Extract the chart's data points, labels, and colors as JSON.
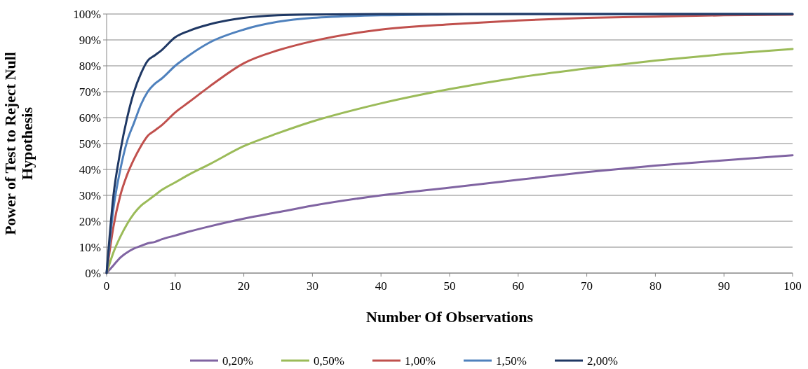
{
  "chart_data": {
    "type": "line",
    "xlabel": "Number Of Observations",
    "ylabel": "Power of Test to Reject Null Hypothesis",
    "x": [
      0,
      1,
      2,
      3,
      4,
      5,
      6,
      7,
      8,
      10,
      12,
      15,
      20,
      25,
      30,
      40,
      50,
      60,
      70,
      80,
      90,
      100
    ],
    "series": [
      {
        "name": "0,20%",
        "color": "#8064a2",
        "values": [
          0,
          3,
          6,
          8,
          9.5,
          10.5,
          11.5,
          12,
          13,
          14.5,
          16,
          18,
          21,
          23.5,
          26,
          30,
          33,
          36,
          39,
          41.5,
          43.5,
          45.5
        ]
      },
      {
        "name": "0,50%",
        "color": "#9bbb59",
        "values": [
          0,
          8,
          14,
          19,
          23,
          26,
          28,
          30,
          32,
          35,
          38,
          42,
          49,
          54,
          58.5,
          65.5,
          71,
          75.5,
          79,
          82,
          84.5,
          86.5
        ]
      },
      {
        "name": "1,00%",
        "color": "#c0504d",
        "values": [
          0,
          18,
          30,
          38,
          44,
          49,
          53,
          55,
          57,
          62,
          66,
          72,
          81,
          86,
          89.5,
          94,
          96,
          97.5,
          98.5,
          99,
          99.5,
          99.7
        ]
      },
      {
        "name": "1,50%",
        "color": "#4f81bd",
        "values": [
          0,
          25,
          40,
          51,
          58,
          65,
          70,
          73,
          75,
          80,
          84,
          89,
          94,
          97,
          98.5,
          99.5,
          99.8,
          100,
          100,
          100,
          100,
          100
        ]
      },
      {
        "name": "2,00%",
        "color": "#1f3864",
        "values": [
          0,
          30,
          47,
          60,
          70,
          77,
          82,
          84,
          86,
          91,
          93.5,
          96,
          98.5,
          99.5,
          99.8,
          100,
          100,
          100,
          100,
          100,
          100,
          100
        ]
      }
    ],
    "xlim": [
      0,
      100
    ],
    "xticks": [
      0,
      10,
      20,
      30,
      40,
      50,
      60,
      70,
      80,
      90,
      100
    ],
    "ylim": [
      0,
      100
    ],
    "yticks": [
      {
        "value": 0,
        "label": "0%"
      },
      {
        "value": 10,
        "label": "10%"
      },
      {
        "value": 20,
        "label": "20%"
      },
      {
        "value": 30,
        "label": "30%"
      },
      {
        "value": 40,
        "label": "40%"
      },
      {
        "value": 50,
        "label": "50%"
      },
      {
        "value": 60,
        "label": "60%"
      },
      {
        "value": 70,
        "label": "70%"
      },
      {
        "value": 80,
        "label": "80%"
      },
      {
        "value": 90,
        "label": "90%"
      },
      {
        "value": 100,
        "label": "100%"
      }
    ],
    "grid": "y",
    "legend": "bottom",
    "marker": "none",
    "line_style": "solid"
  }
}
